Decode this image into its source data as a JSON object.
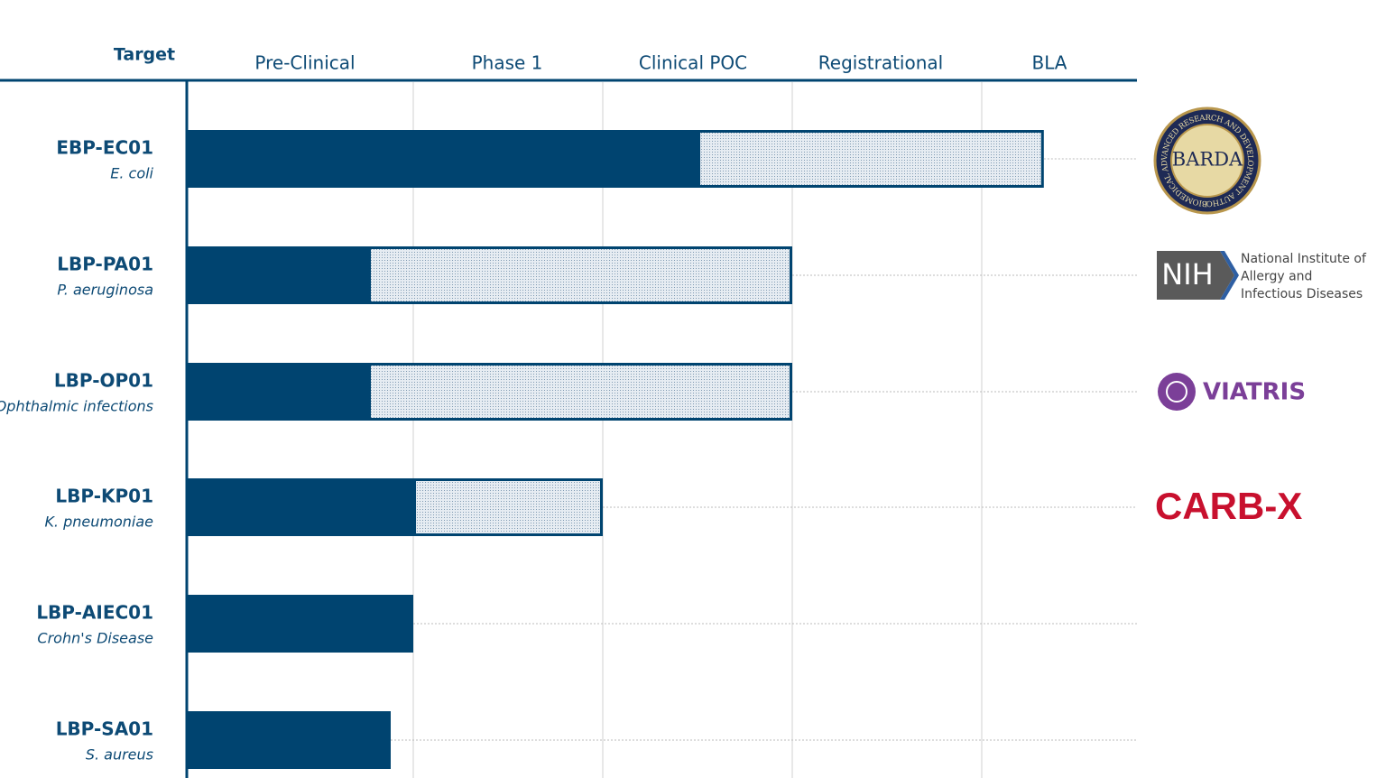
{
  "chart_data": {
    "type": "pipeline",
    "header": "Target",
    "stages": [
      "Pre-Clinical",
      "Phase 1",
      "Clinical POC",
      "Registrational",
      "BLA"
    ],
    "xlim": [
      0,
      5
    ],
    "categories": [
      "EBP-EC01",
      "LBP-PA01",
      "LBP-OP01",
      "LBP-KP01",
      "LBP-AIEC01",
      "LBP-SA01"
    ],
    "subtitles": [
      "E. coli",
      "P. aeruginosa",
      "Ophthalmic infections",
      "K. pneumoniae",
      "Crohn's Disease",
      "S. aureus"
    ],
    "series": [
      {
        "color": "#004470",
        "pattern": "solid",
        "values": [
          2.5,
          0.8,
          0.8,
          1.0,
          1.0,
          0.9
        ]
      },
      {
        "color": "#004470",
        "pattern": "dotted",
        "values": [
          1.9,
          2.2,
          2.2,
          1.0,
          null,
          null
        ]
      }
    ],
    "partners": [
      {
        "logo": "barda",
        "label": "BARDA",
        "ring": "BIOMEDICAL ADVANCED RESEARCH AND DEVELOPMENT AUTHORITY"
      },
      {
        "logo": "nih",
        "label": "NIH",
        "lines": [
          "National Institute of",
          "Allergy and",
          "Infectious Diseases"
        ]
      },
      {
        "logo": "viatris",
        "label": "VIATRIS"
      },
      {
        "logo": "carbx",
        "label": "CARB-X"
      }
    ]
  }
}
